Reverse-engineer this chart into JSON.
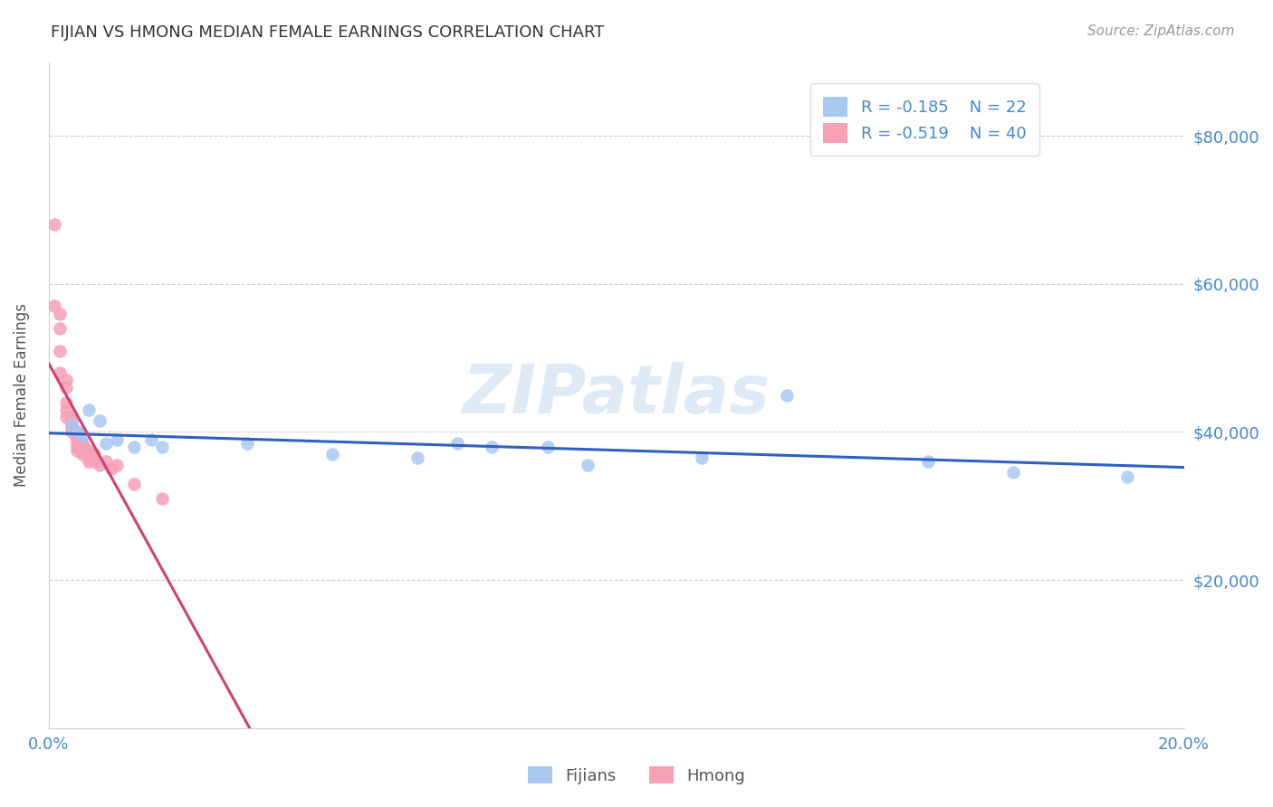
{
  "title": "FIJIAN VS HMONG MEDIAN FEMALE EARNINGS CORRELATION CHART",
  "source": "Source: ZipAtlas.com",
  "ylabel": "Median Female Earnings",
  "fijian_R": -0.185,
  "fijian_N": 22,
  "hmong_R": -0.519,
  "hmong_N": 40,
  "fijian_color": "#a8c8f0",
  "hmong_color": "#f5a0b5",
  "fijian_line_color": "#3060c0",
  "hmong_line_color": "#d04070",
  "ylim": [
    0,
    90000
  ],
  "xlim": [
    0.0,
    0.2
  ],
  "yticks": [
    20000,
    40000,
    60000,
    80000
  ],
  "ytick_labels": [
    "$20,000",
    "$40,000",
    "$60,000",
    "$80,000"
  ],
  "xticks": [
    0.0,
    0.05,
    0.1,
    0.15,
    0.2
  ],
  "xtick_labels": [
    "0.0%",
    "",
    "",
    "",
    "20.0%"
  ],
  "background_color": "#ffffff",
  "fijian_x": [
    0.004,
    0.005,
    0.006,
    0.007,
    0.009,
    0.01,
    0.012,
    0.015,
    0.018,
    0.02,
    0.035,
    0.05,
    0.065,
    0.072,
    0.078,
    0.088,
    0.095,
    0.115,
    0.13,
    0.155,
    0.17,
    0.19
  ],
  "fijian_y": [
    41000,
    40000,
    39500,
    43000,
    41500,
    38500,
    39000,
    38000,
    39000,
    38000,
    38500,
    37000,
    36500,
    38500,
    38000,
    38000,
    35500,
    36500,
    45000,
    36000,
    34500,
    34000
  ],
  "hmong_x": [
    0.001,
    0.001,
    0.002,
    0.002,
    0.002,
    0.002,
    0.003,
    0.003,
    0.003,
    0.003,
    0.003,
    0.004,
    0.004,
    0.004,
    0.004,
    0.004,
    0.005,
    0.005,
    0.005,
    0.005,
    0.005,
    0.005,
    0.005,
    0.006,
    0.006,
    0.006,
    0.006,
    0.007,
    0.007,
    0.007,
    0.007,
    0.008,
    0.008,
    0.008,
    0.009,
    0.01,
    0.011,
    0.012,
    0.015,
    0.02
  ],
  "hmong_y": [
    68000,
    57000,
    56000,
    54000,
    51000,
    48000,
    47000,
    46000,
    44000,
    43000,
    42000,
    42000,
    41500,
    41000,
    40500,
    40000,
    40000,
    39500,
    39000,
    39000,
    38500,
    38000,
    37500,
    38500,
    38000,
    37500,
    37000,
    37500,
    37000,
    36500,
    36000,
    37000,
    36500,
    36000,
    35500,
    36000,
    35000,
    35500,
    33000,
    31000
  ]
}
